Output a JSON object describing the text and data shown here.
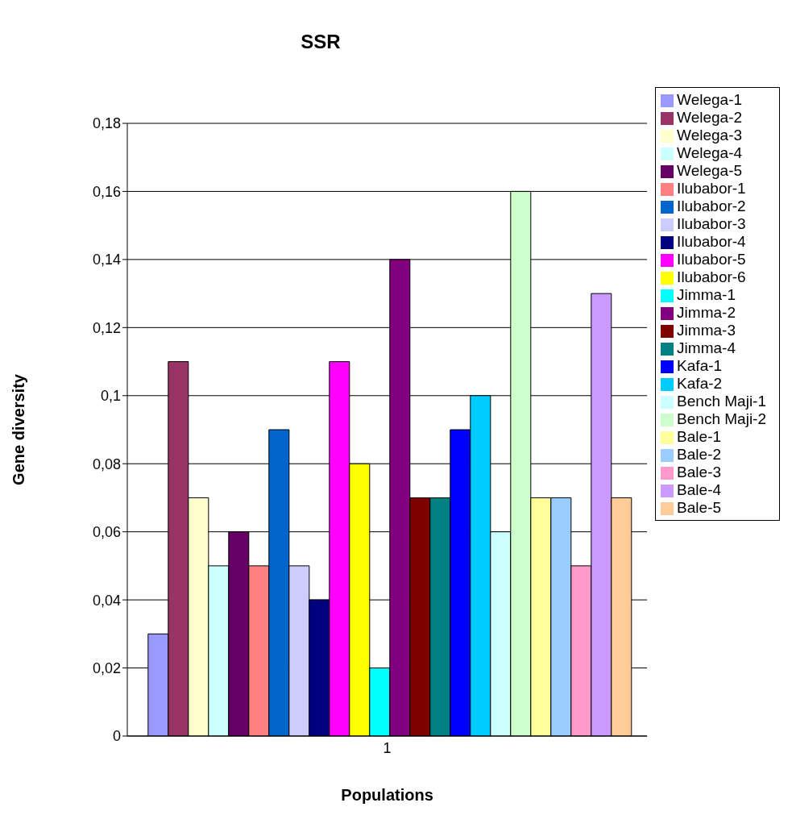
{
  "chart_data": {
    "type": "bar",
    "title": "SSR",
    "xlabel": "Populations",
    "ylabel": "Gene diversity",
    "categories": [
      "1"
    ],
    "ylim": [
      0,
      0.18
    ],
    "yticks": [
      0,
      {
        "value": 0.02,
        "label": "0,02"
      },
      {
        "value": 0.04,
        "label": "0,04"
      },
      {
        "value": 0.06,
        "label": "0,06"
      },
      {
        "value": 0.08,
        "label": "0,08"
      },
      {
        "value": 0.1,
        "label": "0,1"
      },
      {
        "value": 0.12,
        "label": "0,12"
      },
      {
        "value": 0.14,
        "label": "0,14"
      },
      {
        "value": 0.16,
        "label": "0,16"
      },
      {
        "value": 0.18,
        "label": "0,18"
      }
    ],
    "grid": "y",
    "legend": "right",
    "series": [
      {
        "name": "Welega-1",
        "color": "#9999ff",
        "values": [
          0.03
        ]
      },
      {
        "name": "Welega-2",
        "color": "#993366",
        "values": [
          0.11
        ]
      },
      {
        "name": "Welega-3",
        "color": "#ffffcc",
        "values": [
          0.07
        ]
      },
      {
        "name": "Welega-4",
        "color": "#ccffff",
        "values": [
          0.05
        ]
      },
      {
        "name": "Welega-5",
        "color": "#660066",
        "values": [
          0.06
        ]
      },
      {
        "name": "Ilubabor-1",
        "color": "#ff8080",
        "values": [
          0.05
        ]
      },
      {
        "name": "Ilubabor-2",
        "color": "#0066cc",
        "values": [
          0.09
        ]
      },
      {
        "name": "Ilubabor-3",
        "color": "#ccccff",
        "values": [
          0.05
        ]
      },
      {
        "name": "Ilubabor-4",
        "color": "#000080",
        "values": [
          0.04
        ]
      },
      {
        "name": "Ilubabor-5",
        "color": "#ff00ff",
        "values": [
          0.11
        ]
      },
      {
        "name": "Ilubabor-6",
        "color": "#ffff00",
        "values": [
          0.08
        ]
      },
      {
        "name": "Jimma-1",
        "color": "#00ffff",
        "values": [
          0.02
        ]
      },
      {
        "name": "Jimma-2",
        "color": "#800080",
        "values": [
          0.14
        ]
      },
      {
        "name": "Jimma-3",
        "color": "#800000",
        "values": [
          0.07
        ]
      },
      {
        "name": "Jimma-4",
        "color": "#008080",
        "values": [
          0.07
        ]
      },
      {
        "name": "Kafa-1",
        "color": "#0000ff",
        "values": [
          0.09
        ]
      },
      {
        "name": "Kafa-2",
        "color": "#00ccff",
        "values": [
          0.1
        ]
      },
      {
        "name": "Bench Maji-1",
        "color": "#ccffff",
        "values": [
          0.06
        ]
      },
      {
        "name": "Bench Maji-2",
        "color": "#ccffcc",
        "values": [
          0.16
        ]
      },
      {
        "name": "Bale-1",
        "color": "#ffff99",
        "values": [
          0.07
        ]
      },
      {
        "name": "Bale-2",
        "color": "#99ccff",
        "values": [
          0.07
        ]
      },
      {
        "name": "Bale-3",
        "color": "#ff99cc",
        "values": [
          0.05
        ]
      },
      {
        "name": "Bale-4",
        "color": "#cc99ff",
        "values": [
          0.13
        ]
      },
      {
        "name": "Bale-5",
        "color": "#ffcc99",
        "values": [
          0.07
        ]
      }
    ]
  }
}
